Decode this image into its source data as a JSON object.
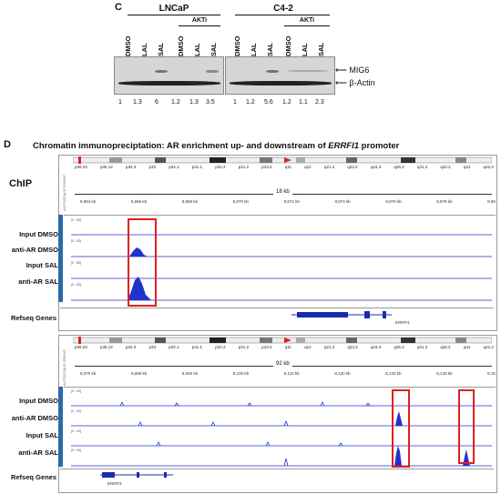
{
  "panel_c": {
    "letter": "C",
    "group1": "LNCaP",
    "group2": "C4-2",
    "akti": "AKTi",
    "lanes": [
      "DMSO",
      "LAL",
      "SAL",
      "DMSO",
      "LAL",
      "SAL"
    ],
    "quant_lncap": [
      "1",
      "1.3",
      "6",
      "1.2",
      "1.3",
      "3.5"
    ],
    "quant_c42": [
      "1",
      "1.2",
      "5.6",
      "1.2",
      "1.1",
      "2.3"
    ],
    "band_mig6": "MIG6",
    "band_actin": "β-Actin"
  },
  "panel_d": {
    "letter": "D",
    "title_prefix": "Chromatin immunopreciptation: AR enrichment up- and downstream of ",
    "title_gene": "ERRFI1",
    "title_suffix": " promoter",
    "chip_label": "ChIP",
    "sidebar_text": "AUTOSCALE GROUP",
    "cyto_bands": [
      "p36.23",
      "p36.12",
      "p34.3",
      "p33",
      "p32.1",
      "p31.1",
      "p22.2",
      "p21.2",
      "p13.2",
      "q11",
      "q12",
      "q21.2",
      "q23.2",
      "q24.3",
      "q25.3",
      "q31.3",
      "q32.2",
      "q41",
      "q42.2"
    ],
    "upper": {
      "span": "18 kb",
      "ticks": [
        "8,864 kb",
        "8,866 kb",
        "8,868 kb",
        "8,870 kb",
        "8,872 kb",
        "8,874 kb",
        "8,876 kb",
        "8,878 kb",
        "8,88"
      ],
      "range": "[0 - 83]",
      "tracks": [
        "Input DMSO",
        "anti-AR DMSO",
        "Input SAL",
        "anti-AR SAL"
      ],
      "refseq_label": "Refseq Genes",
      "gene": "ERRFI1"
    },
    "lower": {
      "span": "92 kb",
      "ticks": [
        "8,070 kb",
        "8,080 kb",
        "8,090 kb",
        "8,100 kb",
        "8,110 kb",
        "8,120 kb",
        "8,130 kb",
        "8,140 kb",
        "8,15"
      ],
      "range": "[0 - 90]",
      "tracks": [
        "Input DMSO",
        "anti-AR DMSO",
        "Input SAL",
        "anti-AR SAL"
      ],
      "refseq_label": "Refseq Genes",
      "gene": "ERRFI1"
    }
  }
}
